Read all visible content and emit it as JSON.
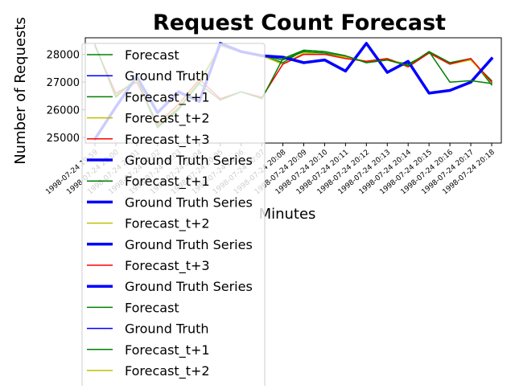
{
  "chart_data": {
    "type": "line",
    "title": "Request Count Forecast",
    "xlabel": "Minutes",
    "ylabel": "Number of Requests",
    "ylim": [
      24800,
      28600
    ],
    "yticks": [
      25000,
      26000,
      27000,
      28000
    ],
    "categories": [
      "1998-07-24 19:59",
      "1998-07-24 20:00",
      "1998-07-24 20:01",
      "1998-07-24 20:02",
      "1998-07-24 20:03",
      "1998-07-24 20:04",
      "1998-07-24 20:05",
      "1998-07-24 20:06",
      "1998-07-24 20:07",
      "1998-07-24 20:08",
      "1998-07-24 20:09",
      "1998-07-24 20:10",
      "1998-07-24 20:11",
      "1998-07-24 20:12",
      "1998-07-24 20:13",
      "1998-07-24 20:14",
      "1998-07-24 20:15",
      "1998-07-24 20:16",
      "1998-07-24 20:17",
      "1998-07-24 20:18"
    ],
    "grid": false,
    "legend_position": "upper-left",
    "series": [
      {
        "name": "Forecast",
        "color": "#008000",
        "width": 1.5,
        "values": [
          28350,
          26500,
          27100,
          25350,
          26000,
          27000,
          28300,
          28100,
          27950,
          27700,
          28150,
          28100,
          27950,
          27700,
          27800,
          27600,
          28100,
          27700,
          27850,
          26900
        ]
      },
      {
        "name": "Forecast_t+1",
        "color": "#008000",
        "width": 1.5,
        "values": [
          28350,
          26450,
          27150,
          25400,
          26050,
          26950,
          28300,
          28100,
          27950,
          27800,
          28100,
          28050,
          27900,
          27750,
          27800,
          27650,
          28050,
          27700,
          27800,
          27050
        ]
      },
      {
        "name": "Forecast_t+2",
        "color": "#bfbf00",
        "width": 1.5,
        "values": [
          28300,
          26550,
          27100,
          25450,
          26100,
          27050,
          28300,
          28100,
          27950,
          27650,
          28050,
          28000,
          27900,
          27750,
          27850,
          27600,
          28050,
          27650,
          27800,
          27000
        ]
      },
      {
        "name": "Forecast_t+3",
        "color": "#ff0000",
        "width": 1.5,
        "values": [
          28300,
          26600,
          27000,
          25500,
          26200,
          27100,
          26400,
          26650,
          26450,
          27650,
          28000,
          28000,
          27850,
          27750,
          27850,
          27550,
          28050,
          27650,
          27850,
          27000
        ]
      },
      {
        "name": "Ground Truth",
        "color": "#0000ff",
        "width": 1.5,
        "values": [
          24950,
          26100,
          27200,
          25900,
          26650,
          26300,
          28400,
          28100,
          27950,
          27900,
          27700,
          27800,
          27400,
          28400,
          27350,
          27750,
          26600,
          26700,
          27000,
          27850
        ]
      },
      {
        "name": "Ground Truth Series",
        "color": "#0000ff",
        "width": 3.5,
        "values": [
          24950,
          26100,
          27200,
          25900,
          26650,
          26300,
          28400,
          28100,
          27950,
          27900,
          27700,
          27800,
          27400,
          28400,
          27350,
          27750,
          26600,
          26700,
          27000,
          27850
        ]
      },
      {
        "name": "Forecast",
        "color": "#008000",
        "width": 1.5,
        "values": [
          28350,
          26450,
          27150,
          25400,
          26050,
          26950,
          26350,
          26650,
          26400,
          27850,
          28150,
          28100,
          27950,
          27700,
          27800,
          27600,
          28100,
          27000,
          27050,
          26950
        ]
      }
    ],
    "legend_entries": [
      {
        "name": "Forecast",
        "color": "#008000",
        "width": 1.5
      },
      {
        "name": "Ground Truth",
        "color": "#0000ff",
        "width": 1.5
      },
      {
        "name": "Forecast_t+1",
        "color": "#008000",
        "width": 1.5
      },
      {
        "name": "Forecast_t+2",
        "color": "#bfbf00",
        "width": 1.5
      },
      {
        "name": "Forecast_t+3",
        "color": "#ff0000",
        "width": 1.5
      },
      {
        "name": "Ground Truth Series",
        "color": "#0000ff",
        "width": 3.5
      },
      {
        "name": "Forecast_t+1",
        "color": "#008000",
        "width": 1.5
      },
      {
        "name": "Ground Truth Series",
        "color": "#0000ff",
        "width": 3.5
      },
      {
        "name": "Forecast_t+2",
        "color": "#bfbf00",
        "width": 1.5
      },
      {
        "name": "Ground Truth Series",
        "color": "#0000ff",
        "width": 3.5
      },
      {
        "name": "Forecast_t+3",
        "color": "#ff0000",
        "width": 1.5
      },
      {
        "name": "Ground Truth Series",
        "color": "#0000ff",
        "width": 3.5
      },
      {
        "name": "Forecast",
        "color": "#008000",
        "width": 1.5
      },
      {
        "name": "Ground Truth",
        "color": "#0000ff",
        "width": 1.5
      },
      {
        "name": "Forecast_t+1",
        "color": "#008000",
        "width": 1.5
      },
      {
        "name": "Forecast_t+2",
        "color": "#bfbf00",
        "width": 1.5
      }
    ]
  }
}
